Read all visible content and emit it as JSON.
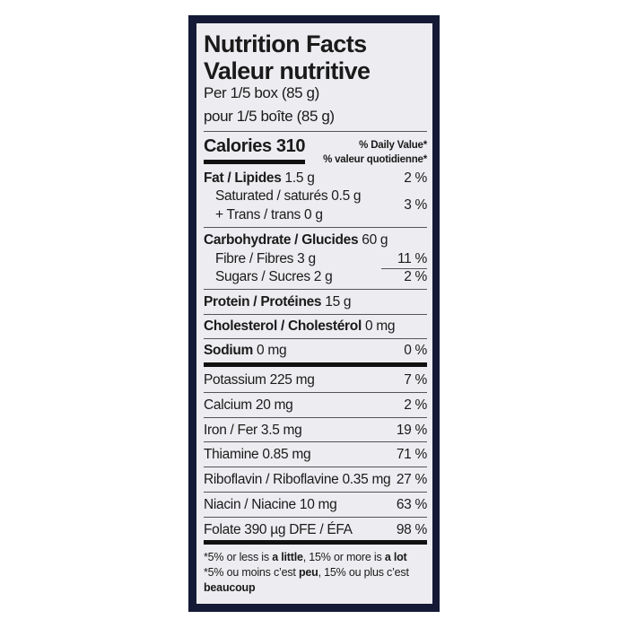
{
  "label": {
    "title_en": "Nutrition Facts",
    "title_fr": "Valeur nutritive",
    "serving_en": "Per 1/5 box (85 g)",
    "serving_fr": "pour 1/5 boîte (85 g)",
    "calories_label": "Calories",
    "calories_value": "310",
    "dv_en": "% Daily Value*",
    "dv_fr": "% valeur quotidienne*",
    "rows": [
      {
        "name": "Fat / Lipides",
        "amount": "1.5 g",
        "dv": "2 %"
      },
      {
        "name": "Saturated / saturés",
        "amount": "0.5 g"
      },
      {
        "name": "+ Trans / trans",
        "amount": "0 g",
        "dv": "3 %"
      },
      {
        "name": "Carbohydrate / Glucides",
        "amount": "60 g"
      },
      {
        "name": "Fibre / Fibres",
        "amount": "3 g",
        "dv": "11 %"
      },
      {
        "name": "Sugars / Sucres",
        "amount": "2 g",
        "dv": "2 %"
      },
      {
        "name": "Protein / Protéines",
        "amount": "15 g"
      },
      {
        "name": "Cholesterol / Cholestérol",
        "amount": "0 mg"
      },
      {
        "name": "Sodium",
        "amount": "0 mg",
        "dv": "0 %"
      }
    ],
    "micros": [
      {
        "text": "Potassium 225 mg",
        "dv": "7 %"
      },
      {
        "text": "Calcium 20 mg",
        "dv": "2 %"
      },
      {
        "text": "Iron / Fer 3.5 mg",
        "dv": "19 %"
      },
      {
        "text": "Thiamine 0.85 mg",
        "dv": "71 %"
      },
      {
        "text": "Riboflavin / Riboflavine 0.35 mg",
        "dv": "27 %"
      },
      {
        "text": "Niacin / Niacine 10 mg",
        "dv": "63 %"
      },
      {
        "text": "Folate 390 µg DFE / ÉFA",
        "dv": "98 %"
      }
    ],
    "foot": {
      "en_a": "*5% or less is ",
      "en_b": "a little",
      "en_c": ", 15% or more is ",
      "en_d": "a lot",
      "fr_a": "*5% ou moins c’est ",
      "fr_b": "peu",
      "fr_c": ", 15% ou plus c’est",
      "fr_d": "beaucoup"
    }
  }
}
